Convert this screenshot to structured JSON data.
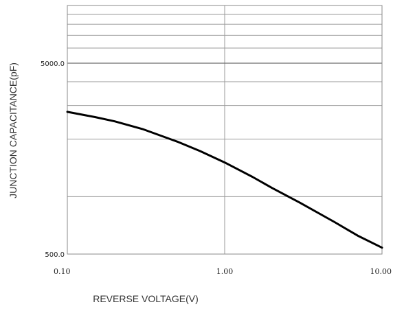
{
  "chart_data": {
    "type": "line",
    "title": "",
    "xlabel": "REVERSE VOLTAGE(V)",
    "ylabel": "JUNCTION CAPACITANCE(pF)",
    "x_scale": "log",
    "y_scale": "log",
    "xlim": [
      0.1,
      10
    ],
    "ylim": [
      500,
      15000
    ],
    "x_ticks": [
      {
        "value": 0.1,
        "label": "0.10"
      },
      {
        "value": 1,
        "label": "1.00"
      },
      {
        "value": 10,
        "label": "10.00"
      }
    ],
    "y_ticks": [
      {
        "value": 500,
        "label": "500.0"
      },
      {
        "value": 5000,
        "label": "5000.0"
      }
    ],
    "grid": true,
    "series": [
      {
        "x": [
          0.1,
          0.15,
          0.2,
          0.3,
          0.5,
          0.7,
          1.0,
          1.5,
          2.0,
          3.0,
          5.0,
          7.0,
          10.0
        ],
        "y": [
          2780,
          2610,
          2480,
          2260,
          1940,
          1730,
          1510,
          1270,
          1110,
          930,
          735,
          625,
          540
        ]
      }
    ],
    "colors": {
      "line": "#000000",
      "grid": "#9a9a9a",
      "frame": "#8a8a8a",
      "text": "#222222"
    }
  }
}
